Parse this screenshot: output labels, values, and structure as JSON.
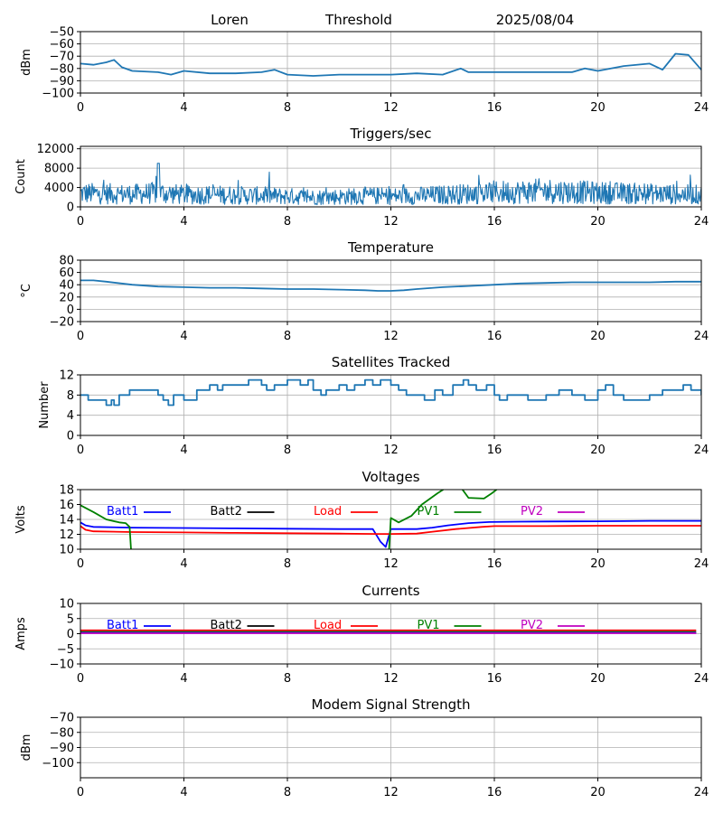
{
  "header": {
    "site": "Loren",
    "mode": "Threshold",
    "date": "2025/08/04"
  },
  "colors": {
    "series_default": "#1f77b4",
    "grid": "#b0b0b0",
    "batt1": "#0000ff",
    "batt2": "#000000",
    "load": "#ff0000",
    "pv1": "#008000",
    "pv2": "#bf00bf"
  },
  "chart_data": [
    {
      "id": "signal",
      "type": "line",
      "title": "",
      "ylabel": "dBm",
      "xlim": [
        0,
        24
      ],
      "ylim": [
        -100,
        -50
      ],
      "x_ticks": [
        0,
        4,
        8,
        12,
        16,
        20,
        24
      ],
      "y_ticks": [
        -100,
        -90,
        -80,
        -70,
        -60,
        -50
      ],
      "grid": true,
      "series": [
        {
          "color": "#1f77b4",
          "x": [
            0,
            0.5,
            1,
            1.3,
            1.6,
            2,
            3,
            3.5,
            4,
            5,
            6,
            7,
            7.5,
            8,
            9,
            10,
            11,
            12,
            13,
            14,
            14.7,
            15,
            16,
            17,
            18,
            19,
            19.5,
            20,
            21,
            22,
            22.5,
            23,
            23.5,
            24
          ],
          "y": [
            -76,
            -77,
            -75,
            -73,
            -79,
            -82,
            -83,
            -85,
            -82,
            -84,
            -84,
            -83,
            -81,
            -85,
            -86,
            -85,
            -85,
            -85,
            -84,
            -85,
            -80,
            -83,
            -83,
            -83,
            -83,
            -83,
            -80,
            -82,
            -78,
            -76,
            -81,
            -68,
            -69,
            -81
          ]
        }
      ]
    },
    {
      "id": "triggers",
      "type": "line",
      "title": "Triggers/sec",
      "ylabel": "Count",
      "xlim": [
        0,
        24
      ],
      "ylim": [
        0,
        12500
      ],
      "x_ticks": [
        0,
        4,
        8,
        12,
        16,
        20,
        24
      ],
      "y_ticks": [
        0,
        4000,
        8000,
        12000
      ],
      "grid": true,
      "noisy": true,
      "series": [
        {
          "color": "#1f77b4",
          "x": [
            0,
            1,
            2,
            3,
            4,
            5,
            6,
            7,
            8,
            9,
            10,
            11,
            12,
            13,
            14,
            15,
            16,
            17,
            18,
            19,
            20,
            21,
            22,
            23,
            24
          ],
          "y": [
            2800,
            2700,
            2600,
            2900,
            2500,
            2500,
            2400,
            2300,
            2200,
            2000,
            2100,
            2300,
            2200,
            2300,
            2500,
            2700,
            3000,
            3100,
            3300,
            3100,
            2900,
            2800,
            2700,
            2600,
            2500
          ]
        }
      ]
    },
    {
      "id": "temperature",
      "type": "line",
      "title": "Temperature",
      "ylabel": "°C",
      "xlim": [
        0,
        24
      ],
      "ylim": [
        -20,
        80
      ],
      "x_ticks": [
        0,
        4,
        8,
        12,
        16,
        20,
        24
      ],
      "y_ticks": [
        -20,
        0,
        20,
        40,
        60,
        80
      ],
      "grid": true,
      "series": [
        {
          "color": "#1f77b4",
          "x": [
            0,
            0.5,
            1,
            2,
            3,
            4,
            5,
            6,
            7,
            8,
            9,
            10,
            11,
            11.5,
            12,
            12.5,
            13,
            14,
            15,
            16,
            17,
            18,
            19,
            20,
            21,
            22,
            23,
            24
          ],
          "y": [
            47,
            47,
            45,
            40,
            37,
            36,
            35,
            35,
            34,
            33,
            33,
            32,
            31,
            30,
            30,
            31,
            33,
            36,
            38,
            40,
            42,
            43,
            44,
            44,
            44,
            44,
            45,
            45
          ]
        }
      ]
    },
    {
      "id": "satellites",
      "type": "line",
      "title": "Satellites Tracked",
      "ylabel": "Number",
      "xlim": [
        0,
        24
      ],
      "ylim": [
        0,
        12
      ],
      "x_ticks": [
        0,
        4,
        8,
        12,
        16,
        20,
        24
      ],
      "y_ticks": [
        0,
        4,
        8,
        12
      ],
      "grid": true,
      "step": true,
      "series": [
        {
          "color": "#1f77b4",
          "x": [
            0,
            0.3,
            0.8,
            1,
            1.2,
            1.3,
            1.5,
            1.8,
            1.9,
            2.5,
            3,
            3.2,
            3.4,
            3.6,
            4,
            4.5,
            4.8,
            5,
            5.3,
            5.5,
            6,
            6.5,
            7,
            7.2,
            7.5,
            8,
            8.5,
            8.8,
            9,
            9.3,
            9.5,
            10,
            10.3,
            10.6,
            11,
            11.3,
            11.6,
            12,
            12.3,
            12.6,
            13,
            13.3,
            13.7,
            14,
            14.4,
            14.8,
            15,
            15.3,
            15.7,
            16,
            16.2,
            16.5,
            17,
            17.3,
            18,
            18.5,
            19,
            19.5,
            20,
            20.3,
            20.6,
            21,
            21.5,
            22,
            22.5,
            23,
            23.3,
            23.6,
            24
          ],
          "y": [
            8,
            7,
            7,
            6,
            7,
            6,
            8,
            8,
            9,
            9,
            8,
            7,
            6,
            8,
            7,
            9,
            9,
            10,
            9,
            10,
            10,
            11,
            10,
            9,
            10,
            11,
            10,
            11,
            9,
            8,
            9,
            10,
            9,
            10,
            11,
            10,
            11,
            10,
            9,
            8,
            8,
            7,
            9,
            8,
            10,
            11,
            10,
            9,
            10,
            8,
            7,
            8,
            8,
            7,
            8,
            9,
            8,
            7,
            9,
            10,
            8,
            7,
            7,
            8,
            9,
            9,
            10,
            9,
            8
          ]
        }
      ]
    },
    {
      "id": "voltages",
      "type": "line",
      "title": "Voltages",
      "ylabel": "Volts",
      "xlim": [
        0,
        24
      ],
      "ylim": [
        10,
        18
      ],
      "x_ticks": [
        0,
        4,
        8,
        12,
        16,
        20,
        24
      ],
      "y_ticks": [
        10,
        12,
        14,
        16,
        18
      ],
      "grid": true,
      "legend": [
        "Batt1",
        "Batt2",
        "Load",
        "PV1",
        "PV2"
      ],
      "series": [
        {
          "name": "Batt1",
          "color": "#0000ff",
          "x": [
            0,
            0.2,
            0.5,
            2,
            4,
            6,
            8,
            10,
            11.3,
            11.6,
            11.8,
            12,
            13,
            13.6,
            14.2,
            15,
            15.8,
            17,
            18,
            20,
            22,
            24
          ],
          "y": [
            13.6,
            13.2,
            13,
            12.9,
            12.85,
            12.8,
            12.75,
            12.7,
            12.7,
            11,
            10.3,
            12.7,
            12.7,
            12.9,
            13.2,
            13.5,
            13.65,
            13.7,
            13.72,
            13.75,
            13.8,
            13.8
          ]
        },
        {
          "name": "Load",
          "color": "#ff0000",
          "x": [
            0,
            0.2,
            0.5,
            2,
            4,
            6,
            8,
            10,
            11.5,
            12,
            13,
            13.5,
            14.5,
            15.5,
            16,
            18,
            20,
            22,
            24
          ],
          "y": [
            13.1,
            12.6,
            12.4,
            12.3,
            12.25,
            12.2,
            12.15,
            12.1,
            12.05,
            12.05,
            12.1,
            12.3,
            12.7,
            13,
            13.1,
            13.1,
            13.15,
            13.15,
            13.15
          ]
        },
        {
          "name": "PV1",
          "color": "#008000",
          "x": [
            0,
            0.5,
            1,
            1.5,
            1.75,
            1.9,
            1.95,
            2.0
          ],
          "y": [
            15.9,
            15,
            14,
            13.6,
            13.5,
            13,
            10.3,
            8
          ],
          "segments": [
            {
              "x": [
                11.9,
                12,
                12.3,
                12.8,
                13.2,
                13.8,
                14.2,
                14.6,
                15,
                15.6,
                15.9,
                16.2
              ],
              "y": [
                8,
                14.2,
                13.6,
                14.5,
                16,
                17.5,
                18.4,
                18.8,
                16.9,
                16.8,
                17.5,
                18.3
              ]
            }
          ]
        }
      ]
    },
    {
      "id": "currents",
      "type": "line",
      "title": "Currents",
      "ylabel": "Amps",
      "xlim": [
        0,
        24
      ],
      "ylim": [
        -10,
        10
      ],
      "x_ticks": [
        0,
        4,
        8,
        12,
        16,
        20,
        24
      ],
      "y_ticks": [
        -10,
        -5,
        0,
        5,
        10
      ],
      "grid": true,
      "legend": [
        "Batt1",
        "Batt2",
        "Load",
        "PV1",
        "PV2"
      ],
      "series": [
        {
          "name": "Load",
          "color": "#ff0000",
          "x": [
            0,
            23.8
          ],
          "y": [
            1.1,
            1.1
          ]
        },
        {
          "name": "PV1",
          "color": "#008000",
          "x": [
            0,
            23.8
          ],
          "y": [
            0.6,
            0.6
          ]
        },
        {
          "name": "Batt1",
          "color": "#0000ff",
          "x": [
            0,
            23.8
          ],
          "y": [
            0.3,
            0.3
          ]
        },
        {
          "name": "PV2",
          "color": "#bf00bf",
          "x": [
            0,
            23.8
          ],
          "y": [
            0.15,
            0.15
          ]
        }
      ]
    },
    {
      "id": "modem",
      "type": "line",
      "title": "Modem Signal Strength",
      "ylabel": "dBm",
      "xlim": [
        0,
        24
      ],
      "ylim": [
        -110,
        -70
      ],
      "x_ticks": [
        0,
        4,
        8,
        12,
        16,
        20,
        24
      ],
      "y_ticks": [
        -100,
        -90,
        -80,
        -70
      ],
      "grid": true,
      "series": []
    }
  ],
  "legend_entries": [
    {
      "label": "Batt1",
      "color": "#0000ff"
    },
    {
      "label": "Batt2",
      "color": "#000000"
    },
    {
      "label": "Load",
      "color": "#ff0000"
    },
    {
      "label": "PV1",
      "color": "#008000"
    },
    {
      "label": "PV2",
      "color": "#bf00bf"
    }
  ]
}
